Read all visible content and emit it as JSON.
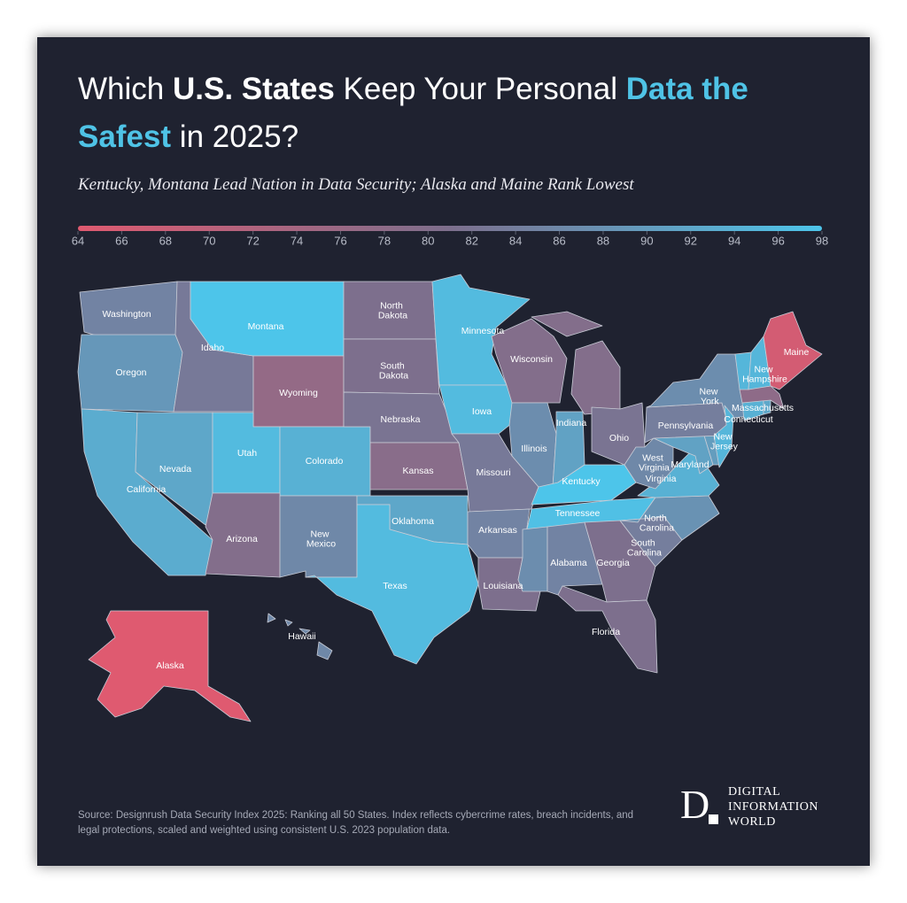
{
  "title": [
    "Which ",
    "U.S. States",
    " Keep Your Personal ",
    "Data the Safest",
    " in 2025?"
  ],
  "subtitle": "Kentucky, Montana Lead Nation in Data Security; Alaska and Maine Rank Lowest",
  "chart_data": {
    "type": "choropleth",
    "xlim": [
      64,
      98
    ],
    "xticks": [
      64,
      66,
      68,
      70,
      72,
      74,
      76,
      78,
      80,
      82,
      84,
      86,
      88,
      90,
      92,
      94,
      96,
      98
    ],
    "colorscale": [
      "#df5a70",
      "#7d6f8d",
      "#4dc5ea"
    ],
    "categories": [
      "Washington",
      "Oregon",
      "California",
      "Nevada",
      "Idaho",
      "Montana",
      "Wyoming",
      "Utah",
      "Colorado",
      "Arizona",
      "New Mexico",
      "North Dakota",
      "South Dakota",
      "Nebraska",
      "Kansas",
      "Oklahoma",
      "Texas",
      "Minnesota",
      "Iowa",
      "Missouri",
      "Arkansas",
      "Louisiana",
      "Wisconsin",
      null,
      "Illinois",
      "Indiana",
      "Ohio",
      "Kentucky",
      "Tennessee",
      null,
      "Alabama",
      "Georgia",
      "Florida",
      "South Carolina",
      "North Carolina",
      "Virginia",
      "West Virginia",
      "Maryland",
      null,
      "Pennsylvania",
      "New York",
      "New Jersey",
      "Connecticut",
      null,
      "Massachusetts",
      null,
      "New Hampshire",
      "Maine",
      "Alaska",
      "Hawaii"
    ],
    "values": [
      85,
      89,
      93,
      92,
      83,
      98,
      77,
      96,
      94,
      80,
      86,
      81,
      81,
      82,
      79,
      92,
      96,
      96,
      96,
      83,
      85,
      81,
      80,
      80,
      87,
      91,
      82,
      98,
      97,
      87,
      85,
      81,
      81,
      84,
      88,
      94,
      86,
      91,
      90,
      84,
      87,
      95,
      94,
      92,
      78,
      95,
      95,
      66,
      64,
      86
    ]
  },
  "source": "Source: Designrush Data Security Index 2025: Ranking all 50 States. Index reflects cybercrime rates, breach incidents, and legal protections, scaled and weighted using consistent U.S. 2023 population data.",
  "logo": {
    "mark": "D",
    "lines": [
      "DIGITAL",
      "INFORMATION",
      "WORLD"
    ]
  }
}
